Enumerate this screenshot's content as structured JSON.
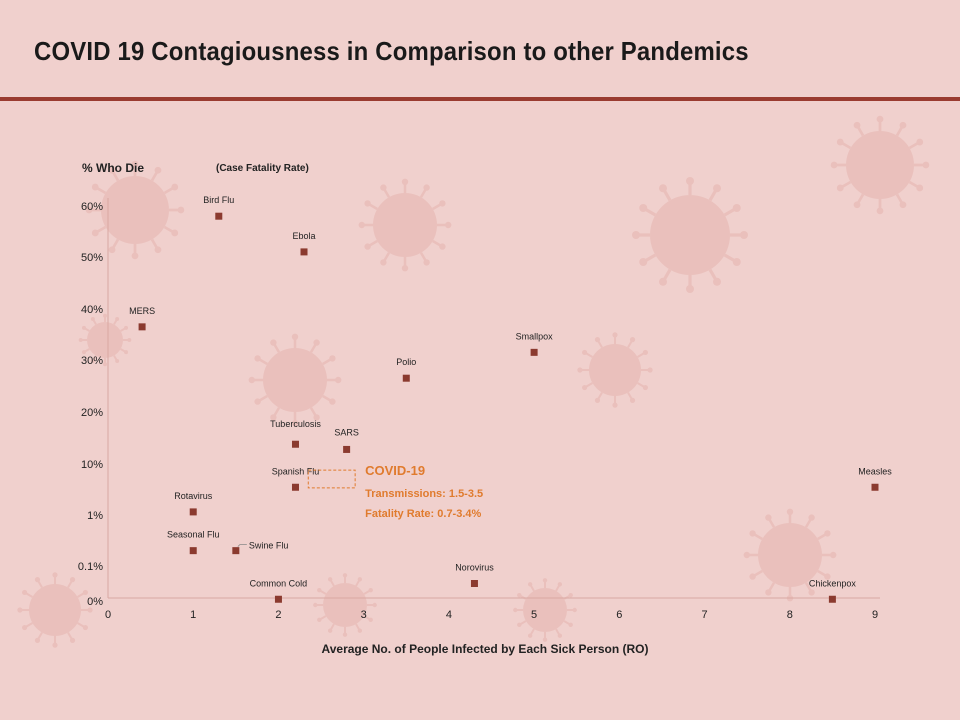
{
  "slide": {
    "title": "COVID 19 Contagiousness in Comparison to other Pandemics"
  },
  "colors": {
    "background": "#f0d0cd",
    "accent": "#9a3b30",
    "marker": "#8b3a2f",
    "highlight": "#e07b2e"
  },
  "chart_data": {
    "type": "scatter",
    "title": "COVID 19 Contagiousness in Comparison to other Pandemics",
    "ylabel": "% Who Die",
    "ylabel_note": "(Case Fatality Rate)",
    "xlabel": "Average No. of People Infected by Each Sick Person (RO)",
    "xlim": [
      0,
      9
    ],
    "x_ticks": [
      "0",
      "1",
      "2",
      "3",
      "4",
      "5",
      "6",
      "7",
      "8",
      "9"
    ],
    "y_ticks": [
      "0%",
      "0.1%",
      "1%",
      "10%",
      "20%",
      "30%",
      "40%",
      "50%",
      "60%"
    ],
    "y_scale_note": "piecewise axis: 0%, 0.1%, 1%, 10% then linear 10%-60%",
    "points": [
      {
        "name": "Bird Flu",
        "x": 1.3,
        "y": 58
      },
      {
        "name": "Ebola",
        "x": 2.3,
        "y": 51
      },
      {
        "name": "MERS",
        "x": 0.4,
        "y": 36.5
      },
      {
        "name": "Smallpox",
        "x": 5.0,
        "y": 31.5
      },
      {
        "name": "Polio",
        "x": 3.5,
        "y": 26.5
      },
      {
        "name": "Tuberculosis",
        "x": 2.2,
        "y": 13.8
      },
      {
        "name": "SARS",
        "x": 2.8,
        "y": 12.8
      },
      {
        "name": "Spanish Flu",
        "x": 2.2,
        "y": 3.5
      },
      {
        "name": "Rotavirus",
        "x": 1.0,
        "y": 1.15
      },
      {
        "name": "Seasonal Flu",
        "x": 1.0,
        "y": 0.2
      },
      {
        "name": "Swine Flu",
        "x": 1.5,
        "y": 0.2
      },
      {
        "name": "Common Cold",
        "x": 2.0,
        "y": 0.005
      },
      {
        "name": "Norovirus",
        "x": 4.3,
        "y": 0.05
      },
      {
        "name": "Chickenpox",
        "x": 8.5,
        "y": 0.005
      },
      {
        "name": "Measles",
        "x": 9.0,
        "y": 3.5
      }
    ],
    "highlight": {
      "title": "COVID-19",
      "line1": "Transmissions: 1.5-3.5",
      "line2": "Fatality Rate: 0.7-3.4%",
      "x_range": [
        2.35,
        2.9
      ],
      "y_range": [
        3.4,
        7.6
      ]
    }
  }
}
